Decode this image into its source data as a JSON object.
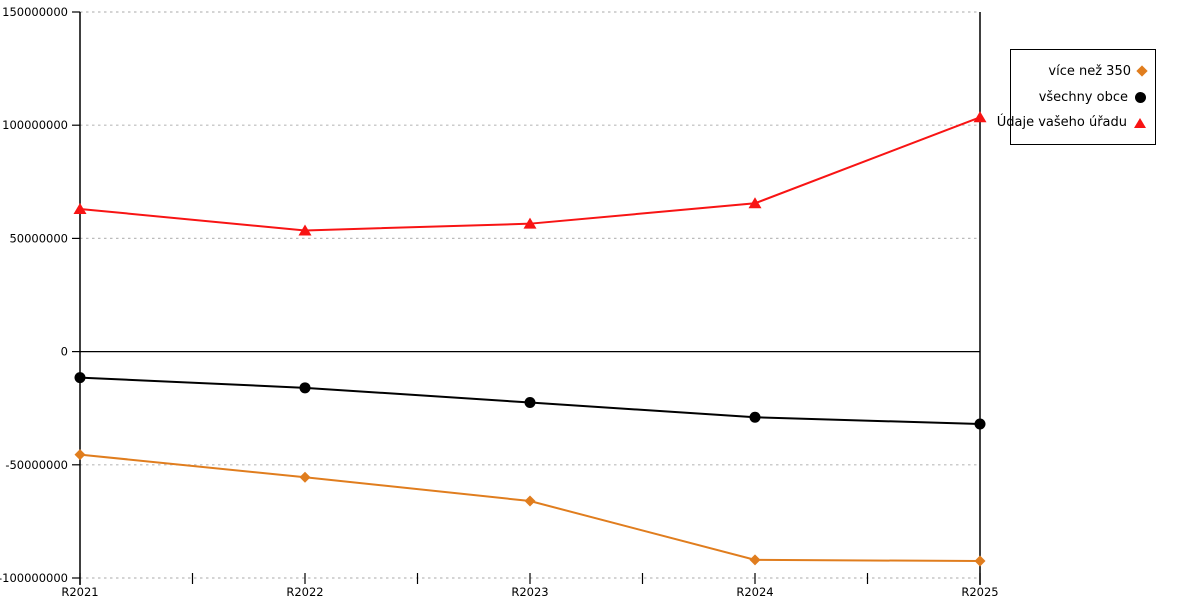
{
  "chart_data": {
    "type": "line",
    "title": "",
    "xlabel": "",
    "ylabel": "",
    "categories": [
      "R2021",
      "R2022",
      "R2023",
      "R2024",
      "R2025"
    ],
    "series": [
      {
        "name": "více než 350",
        "marker": "diamond",
        "color": "#E07D1E",
        "values": [
          -45500000,
          -55500000,
          -66000000,
          -92000000,
          -92500000
        ]
      },
      {
        "name": "všechny obce",
        "marker": "circle",
        "color": "#000000",
        "values": [
          -11500000,
          -16000000,
          -22500000,
          -29000000,
          -32000000
        ]
      },
      {
        "name": "Údaje vašeho úřadu",
        "marker": "triangle",
        "color": "#F81414",
        "values": [
          63000000,
          53500000,
          56500000,
          65500000,
          103500000
        ]
      }
    ],
    "y_ticks": [
      {
        "value": 150000000,
        "label": "150000000"
      },
      {
        "value": 100000000,
        "label": "100000000"
      },
      {
        "value": 50000000,
        "label": "50000000"
      },
      {
        "value": 0,
        "label": "0"
      },
      {
        "value": -50000000,
        "label": "-50000000"
      },
      {
        "value": -100000000,
        "label": "-100000000"
      }
    ],
    "ylim": [
      -100000000,
      150000000
    ],
    "grid": "horizontal-dotted",
    "gridline_color": "#BBBBBB",
    "axis_color": "#000000",
    "legend_position": "top-right-outside"
  }
}
